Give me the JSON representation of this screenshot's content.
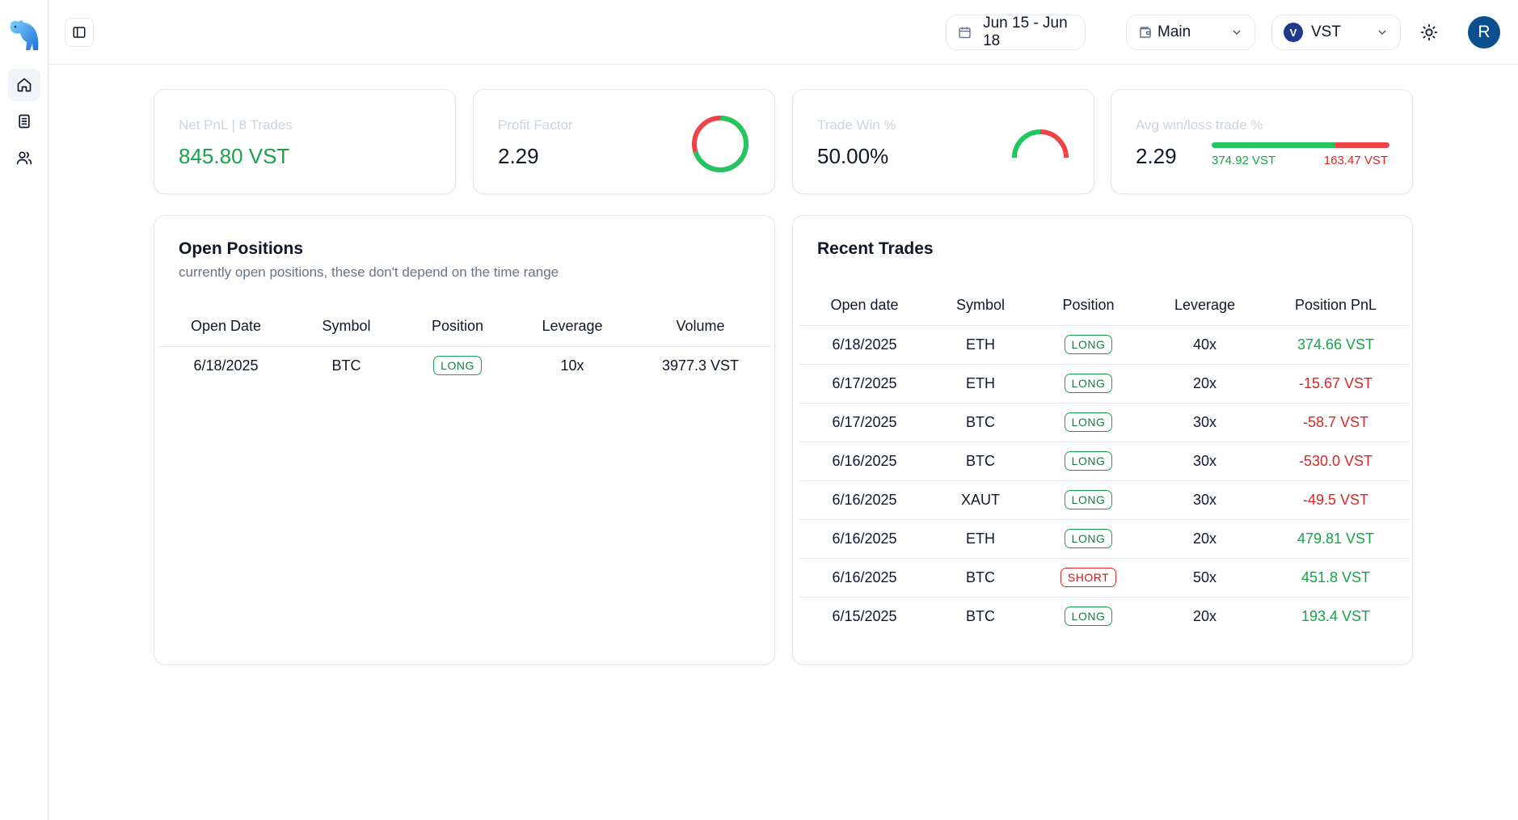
{
  "colors": {
    "accent": "#0b4f8f",
    "win": "#22c55e",
    "loss": "#ef4444",
    "win_text": "#16a34a",
    "loss_text": "#dc2626"
  },
  "sidebar": {
    "items": [
      {
        "name": "home-icon",
        "active": true
      },
      {
        "name": "journal-icon",
        "active": false
      },
      {
        "name": "users-icon",
        "active": false
      }
    ]
  },
  "header": {
    "date_range": "Jun 15 - Jun 18",
    "account": "Main",
    "currency": "VST",
    "avatar_initial": "R"
  },
  "stats": {
    "net_pnl": {
      "label": "Net PnL | 8 Trades",
      "value": "845.80 VST"
    },
    "profit_factor": {
      "label": "Profit Factor",
      "value": "2.29",
      "win_fraction": 0.7
    },
    "trade_win": {
      "label": "Trade Win %",
      "value": "50.00%",
      "win_fraction": 0.5
    },
    "avg_win_loss": {
      "label": "Avg win/loss trade %",
      "value": "2.29",
      "avg_win": "374.92 VST",
      "avg_loss": "163.47 VST",
      "win_fraction": 0.696
    }
  },
  "open_positions": {
    "title": "Open Positions",
    "subtitle": "currently open positions, these don't depend on the time range",
    "columns": [
      "Open Date",
      "Symbol",
      "Position",
      "Leverage",
      "Volume"
    ],
    "rows": [
      {
        "date": "6/18/2025",
        "symbol": "BTC",
        "position": "LONG",
        "leverage": "10x",
        "volume": "3977.3 VST"
      }
    ]
  },
  "recent_trades": {
    "title": "Recent Trades",
    "columns": [
      "Open date",
      "Symbol",
      "Position",
      "Leverage",
      "Position PnL"
    ],
    "rows": [
      {
        "date": "6/18/2025",
        "symbol": "ETH",
        "position": "LONG",
        "leverage": "40x",
        "pnl": "374.66 VST",
        "positive": true
      },
      {
        "date": "6/17/2025",
        "symbol": "ETH",
        "position": "LONG",
        "leverage": "20x",
        "pnl": "-15.67 VST",
        "positive": false
      },
      {
        "date": "6/17/2025",
        "symbol": "BTC",
        "position": "LONG",
        "leverage": "30x",
        "pnl": "-58.7 VST",
        "positive": false
      },
      {
        "date": "6/16/2025",
        "symbol": "BTC",
        "position": "LONG",
        "leverage": "30x",
        "pnl": "-530.0 VST",
        "positive": false
      },
      {
        "date": "6/16/2025",
        "symbol": "XAUT",
        "position": "LONG",
        "leverage": "30x",
        "pnl": "-49.5 VST",
        "positive": false
      },
      {
        "date": "6/16/2025",
        "symbol": "ETH",
        "position": "LONG",
        "leverage": "20x",
        "pnl": "479.81 VST",
        "positive": true
      },
      {
        "date": "6/16/2025",
        "symbol": "BTC",
        "position": "SHORT",
        "leverage": "50x",
        "pnl": "451.8 VST",
        "positive": true
      },
      {
        "date": "6/15/2025",
        "symbol": "BTC",
        "position": "LONG",
        "leverage": "20x",
        "pnl": "193.4 VST",
        "positive": true
      }
    ]
  }
}
